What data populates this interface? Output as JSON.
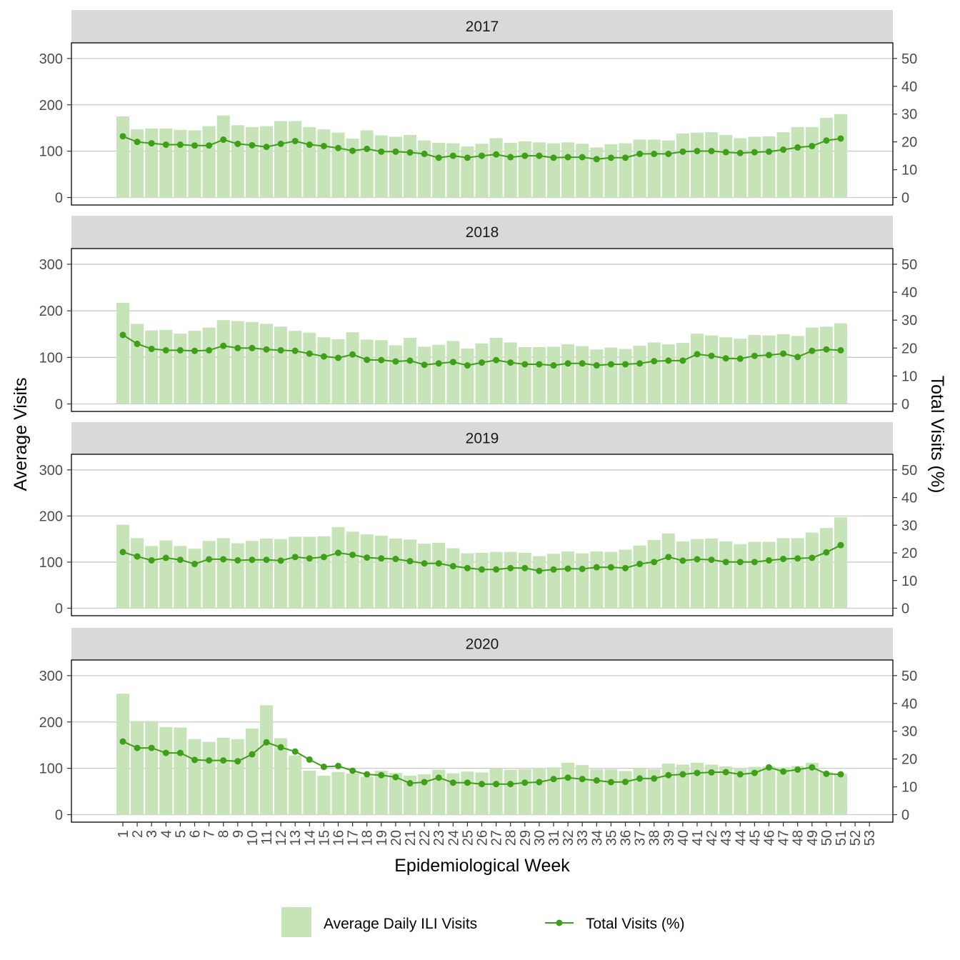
{
  "colors": {
    "bar": "#c7e3b8",
    "line": "#3f9e1a",
    "strip": "#d9d9d9",
    "grid": "#c9c9c9"
  },
  "axes": {
    "x_title": "Epidemiological Week",
    "y_left_title": "Average Visits",
    "y_right_title": "Total Visits (%)"
  },
  "legend": {
    "bar_label": "Average Daily ILI Visits",
    "line_label": "Total Visits (%)",
    "position": "bottom"
  },
  "chart_data": {
    "type": "bar",
    "title": "",
    "xlabel": "Epidemiological Week",
    "ylabel": "Average Visits",
    "ylabel_right": "Total Visits (%)",
    "x_ticks": [
      "1",
      "2",
      "3",
      "4",
      "5",
      "6",
      "7",
      "8",
      "9",
      "10",
      "11",
      "12",
      "13",
      "14",
      "15",
      "16",
      "17",
      "18",
      "19",
      "20",
      "21",
      "22",
      "23",
      "24",
      "25",
      "26",
      "27",
      "28",
      "29",
      "30",
      "31",
      "32",
      "33",
      "34",
      "35",
      "36",
      "37",
      "38",
      "39",
      "40",
      "41",
      "42",
      "43",
      "44",
      "45",
      "46",
      "47",
      "48",
      "49",
      "50",
      "51",
      "52",
      "53"
    ],
    "ylim_left": [
      0,
      300
    ],
    "yticks_left": [
      0,
      100,
      200,
      300
    ],
    "ylim_right": [
      0,
      50
    ],
    "yticks_right": [
      0,
      10,
      20,
      30,
      40,
      50
    ],
    "grid": true,
    "legend_position": "bottom",
    "panels": [
      {
        "year": "2017",
        "series": [
          {
            "name": "Average Daily ILI Visits",
            "type": "bar",
            "values": [
              175,
              147,
              149,
              149,
              146,
              145,
              154,
              177,
              156,
              152,
              154,
              165,
              165,
              152,
              147,
              140,
              127,
              145,
              134,
              131,
              135,
              123,
              118,
              117,
              110,
              116,
              128,
              118,
              121,
              119,
              117,
              119,
              116,
              108,
              115,
              117,
              125,
              125,
              123,
              138,
              140,
              141,
              135,
              128,
              131,
              132,
              141,
              152,
              152,
              172,
              180
            ]
          },
          {
            "name": "Total Visits (%)",
            "type": "line",
            "values": [
              22,
              20,
              19.5,
              19,
              19,
              18.7,
              18.7,
              20.8,
              19.3,
              18.8,
              18.2,
              19.3,
              20.3,
              19,
              18.5,
              17.8,
              16.8,
              17.5,
              16.5,
              16.5,
              16.2,
              15.7,
              14.3,
              15,
              14.3,
              15,
              15.5,
              14.5,
              15,
              15,
              14.3,
              14.5,
              14.5,
              13.8,
              14.3,
              14.3,
              15.7,
              15.7,
              15.7,
              16.5,
              16.7,
              16.7,
              16.3,
              16,
              16.3,
              16.5,
              17.2,
              18,
              18.5,
              20.5,
              21.2
            ]
          }
        ]
      },
      {
        "year": "2018",
        "series": [
          {
            "name": "Average Daily ILI Visits",
            "type": "bar",
            "values": [
              217,
              172,
              158,
              159,
              151,
              157,
              164,
              180,
              178,
              176,
              172,
              166,
              157,
              153,
              143,
              139,
              154,
              138,
              137,
              126,
              142,
              123,
              127,
              135,
              119,
              130,
              142,
              132,
              122,
              122,
              123,
              128,
              124,
              117,
              121,
              118,
              125,
              132,
              128,
              131,
              151,
              147,
              143,
              140,
              148,
              147,
              150,
              146,
              164,
              166,
              173
            ]
          },
          {
            "name": "Total Visits (%)",
            "type": "line",
            "values": [
              24.7,
              21.5,
              19.7,
              19.2,
              19.2,
              19,
              19.2,
              20.8,
              20,
              20,
              19.5,
              19.2,
              19,
              18,
              17,
              16.5,
              17.7,
              15.8,
              15.7,
              15.2,
              15.5,
              14,
              14.5,
              15,
              13.8,
              14.8,
              15.7,
              14.8,
              14.2,
              14.2,
              13.8,
              14.5,
              14.5,
              13.8,
              14.2,
              14.2,
              14.5,
              15.3,
              15.5,
              15.5,
              17.8,
              17.2,
              16.3,
              16.2,
              17.2,
              17.5,
              18,
              16.8,
              19,
              19.5,
              19.2
            ]
          }
        ]
      },
      {
        "year": "2019",
        "series": [
          {
            "name": "Average Daily ILI Visits",
            "type": "bar",
            "values": [
              181,
              152,
              135,
              147,
              135,
              129,
              146,
              152,
              141,
              146,
              151,
              150,
              155,
              155,
              156,
              176,
              166,
              160,
              157,
              151,
              149,
              140,
              142,
              130,
              119,
              120,
              122,
              122,
              120,
              113,
              118,
              123,
              119,
              123,
              122,
              127,
              136,
              148,
              162,
              145,
              150,
              151,
              145,
              139,
              144,
              144,
              152,
              152,
              164,
              174,
              197
            ]
          },
          {
            "name": "Total Visits (%)",
            "type": "line",
            "values": [
              20.3,
              18.7,
              17.3,
              18.2,
              17.5,
              16,
              17.7,
              17.7,
              17.3,
              17.5,
              17.5,
              17.2,
              18.5,
              18,
              18.5,
              20,
              19.3,
              18.3,
              18,
              17.8,
              17,
              16.2,
              16.2,
              15.2,
              14.5,
              14,
              14,
              14.5,
              14.5,
              13.5,
              14,
              14.3,
              14.2,
              14.8,
              14.8,
              14.5,
              16,
              16.7,
              18.5,
              17.2,
              17.7,
              17.5,
              16.7,
              16.7,
              16.7,
              17.3,
              17.8,
              18,
              18.2,
              20.2,
              22.8
            ]
          }
        ]
      },
      {
        "year": "2020",
        "series": [
          {
            "name": "Average Daily ILI Visits",
            "type": "bar",
            "values": [
              261,
              202,
              202,
              189,
              188,
              163,
              157,
              166,
              163,
              186,
              236,
              165,
              128,
              95,
              84,
              92,
              89,
              82,
              95,
              90,
              84,
              87,
              97,
              89,
              93,
              91,
              100,
              97,
              98,
              101,
              102,
              112,
              107,
              98,
              98,
              94,
              100,
              98,
              110,
              108,
              112,
              108,
              104,
              101,
              103,
              104,
              102,
              105,
              112,
              92,
              88
            ]
          },
          {
            "name": "Total Visits (%)",
            "type": "line",
            "values": [
              26.3,
              24,
              24,
              22.2,
              22.2,
              19.7,
              19.5,
              19.5,
              19.2,
              21.7,
              26,
              24.2,
              22.7,
              19.8,
              17.2,
              17.5,
              15.8,
              14.5,
              14.2,
              13.5,
              11.3,
              11.7,
              13.3,
              11.5,
              11.5,
              11,
              11,
              11,
              11.5,
              11.7,
              12.8,
              13.3,
              12.8,
              12.3,
              11.7,
              11.8,
              13,
              13,
              14.2,
              14.5,
              15,
              15.2,
              15.3,
              14.5,
              15,
              17,
              15.5,
              16.2,
              17,
              14.7,
              14.5
            ]
          }
        ]
      }
    ]
  }
}
